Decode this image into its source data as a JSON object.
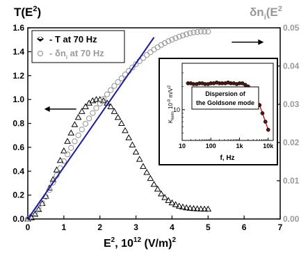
{
  "chart_data": {
    "type": "scatter",
    "left_axis": {
      "title": "T(E",
      "title_sup": "2",
      "title_close": ")",
      "range": [
        0,
        1.6
      ],
      "ticks": [
        "0.0",
        "0.2",
        "0.4",
        "0.6",
        "0.8",
        "1.0",
        "1.2",
        "1.4",
        "1.6"
      ]
    },
    "right_axis": {
      "title": "δn",
      "title_sub": "i",
      "title_rest": "(E",
      "title_sup": "2",
      "range": [
        0,
        0.05
      ],
      "ticks": [
        "0.00",
        "0.01",
        "0.02",
        "0.03",
        "0.04",
        "0.05"
      ]
    },
    "x_axis": {
      "label_prefix": "E",
      "label_sup": "2",
      "label_suffix": ", 10",
      "label_sup2": "12",
      "label_end": " (V/m)",
      "label_sup3": "2",
      "range": [
        0,
        7
      ],
      "ticks": [
        "0",
        "1",
        "2",
        "3",
        "4",
        "5",
        "6",
        "7"
      ]
    },
    "legend": {
      "entries": [
        {
          "marker": "filled-diamond",
          "text": "- T at 70 Hz"
        },
        {
          "marker": "open-circle",
          "text_prefix": "- δn",
          "text_sub": "i",
          "text_suffix": " at 70 Hz"
        }
      ]
    },
    "series": [
      {
        "marker": "triangle",
        "color": "#000000",
        "axis": "left",
        "x": [
          0.0,
          0.1,
          0.2,
          0.3,
          0.4,
          0.5,
          0.6,
          0.7,
          0.8,
          0.9,
          1.0,
          1.1,
          1.2,
          1.3,
          1.4,
          1.5,
          1.6,
          1.7,
          1.8,
          1.9,
          2.0,
          2.1,
          2.2,
          2.3,
          2.4,
          2.5,
          2.6,
          2.7,
          2.8,
          2.9,
          3.0,
          3.1,
          3.2,
          3.3,
          3.4,
          3.5,
          3.6,
          3.7,
          3.8,
          3.9,
          4.0,
          4.1,
          4.2,
          4.3,
          4.4,
          4.5,
          4.6,
          4.7,
          4.8,
          4.9,
          5.0
        ],
        "y": [
          0.0,
          0.01,
          0.04,
          0.08,
          0.13,
          0.19,
          0.26,
          0.33,
          0.41,
          0.49,
          0.57,
          0.65,
          0.72,
          0.79,
          0.85,
          0.9,
          0.94,
          0.97,
          0.99,
          1.0,
          1.0,
          0.99,
          0.97,
          0.94,
          0.9,
          0.85,
          0.8,
          0.74,
          0.68,
          0.62,
          0.56,
          0.5,
          0.44,
          0.39,
          0.34,
          0.29,
          0.25,
          0.21,
          0.18,
          0.155,
          0.135,
          0.12,
          0.108,
          0.1,
          0.094,
          0.09,
          0.087,
          0.085,
          0.084,
          0.083,
          0.083
        ]
      },
      {
        "marker": "open-circle",
        "color": "#999999",
        "axis": "right",
        "x": [
          0.0,
          0.1,
          0.2,
          0.3,
          0.4,
          0.5,
          0.6,
          0.7,
          0.8,
          0.9,
          1.0,
          1.1,
          1.2,
          1.3,
          1.4,
          1.5,
          1.6,
          1.7,
          1.8,
          1.9,
          2.0,
          2.1,
          2.2,
          2.3,
          2.4,
          2.5,
          2.6,
          2.7,
          2.8,
          2.9,
          3.0,
          3.1,
          3.2,
          3.3,
          3.4,
          3.5,
          3.6,
          3.7,
          3.8,
          3.9,
          4.0,
          4.1,
          4.2,
          4.3,
          4.4,
          4.5,
          4.6,
          4.7,
          4.8,
          4.9,
          5.0
        ],
        "y": [
          0.0,
          0.0007,
          0.0016,
          0.0028,
          0.0042,
          0.0058,
          0.0076,
          0.0095,
          0.0114,
          0.0133,
          0.0151,
          0.0169,
          0.0186,
          0.0203,
          0.0219,
          0.0234,
          0.0249,
          0.0263,
          0.0277,
          0.029,
          0.0302,
          0.0314,
          0.0326,
          0.0337,
          0.0348,
          0.0358,
          0.0368,
          0.0378,
          0.0387,
          0.0396,
          0.0405,
          0.0413,
          0.0421,
          0.0429,
          0.0436,
          0.0443,
          0.0449,
          0.0455,
          0.046,
          0.0465,
          0.0469,
          0.0473,
          0.0477,
          0.048,
          0.0483,
          0.0486,
          0.0488,
          0.0489,
          0.049,
          0.049,
          0.049
        ]
      }
    ],
    "fit_line": {
      "color": "#1a1aa6",
      "x": [
        0,
        3.5
      ],
      "y": [
        0,
        1.52
      ]
    },
    "arrows": [
      {
        "direction": "left",
        "at": {
          "x": 0.9,
          "y": 0.92
        }
      },
      {
        "direction": "right",
        "at": {
          "x": 6.1,
          "y": 1.48
        }
      }
    ],
    "inset": {
      "xlabel": "f, Hz",
      "ylabel_prefix": "K",
      "ylabel_sub": "kerr",
      "ylabel_suffix": ", 10",
      "ylabel_sup": "-9",
      "ylabel_end": " m/V",
      "ylabel_sup2": "2",
      "x_ticks": [
        "10",
        "100",
        "1k",
        "10k"
      ],
      "y_tick": "10",
      "annotation_line1": "Dispersion of",
      "annotation_line2": "the Goldsone mode",
      "points_f": [
        16,
        20,
        25,
        32,
        40,
        50,
        63,
        80,
        100,
        126,
        160,
        200,
        250,
        320,
        400,
        500,
        630,
        800,
        1000,
        1260,
        1600,
        2000,
        2500,
        3200,
        4000,
        5000,
        6300,
        8000,
        10000
      ],
      "points_k": [
        22,
        22,
        21.5,
        21.5,
        22,
        22,
        21.5,
        21.5,
        22,
        22,
        22.5,
        22,
        22,
        22,
        22.5,
        22,
        22,
        21.5,
        22,
        22,
        21,
        20,
        18.5,
        16.5,
        14,
        11.5,
        9,
        7,
        5.5
      ],
      "k_range": [
        4,
        40
      ],
      "f_range": [
        10,
        15000
      ],
      "fit_color": "#cc0000",
      "point_color": "#4a1a10"
    }
  }
}
